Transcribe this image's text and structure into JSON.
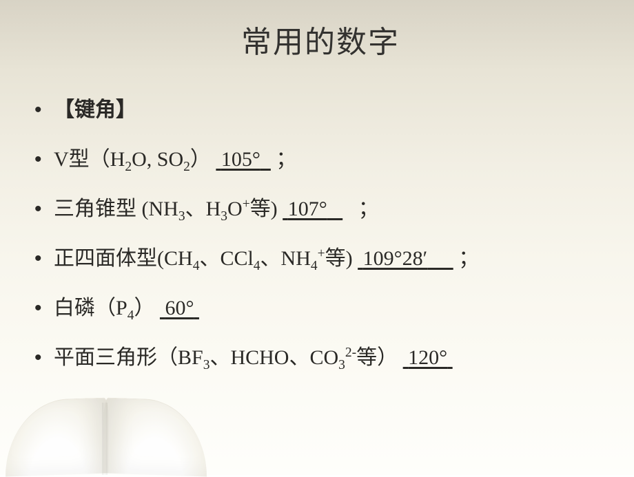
{
  "title": "常用的数字",
  "section_heading": "【键角】",
  "items": [
    {
      "prefix": "V型（",
      "formula_parts": [
        "H",
        "2",
        "O,   SO",
        "2"
      ],
      "suffix": "）",
      "value": "105°",
      "tail": "；"
    },
    {
      "prefix": "三角锥型 (",
      "formula_parts_a": [
        "NH",
        "3"
      ],
      "sep1": "、",
      "formula_parts_b": [
        "H",
        "3",
        "O"
      ],
      "sup_b": "+",
      "etc": "等)",
      "value": "107°",
      "tail": "；"
    },
    {
      "prefix": "正四面体型(",
      "f1": [
        "CH",
        "4"
      ],
      "sep1": "、",
      "f2": [
        "CCl",
        "4"
      ],
      "sep2": "、",
      "f3_base": "NH",
      "f3_sub": "4",
      "f3_sup": "+",
      "etc": "等)",
      "value": "109°28′",
      "tail": "；"
    },
    {
      "prefix": "白磷（",
      "f_base": "P",
      "f_sub": "4",
      "suffix": "）",
      "value": "60°"
    },
    {
      "prefix": "平面三角形（",
      "f1": [
        "BF",
        "3"
      ],
      "sep1": "、",
      "plain": "HCHO",
      "sep2": "、",
      "f3_base": "CO",
      "f3_sub": "3",
      "f3_sup": "2-",
      "etc": "等）",
      "value": "120°"
    }
  ],
  "colors": {
    "text": "#2a2926",
    "bg_top": "#d8d3c5",
    "bg_bottom": "#fefefb"
  }
}
